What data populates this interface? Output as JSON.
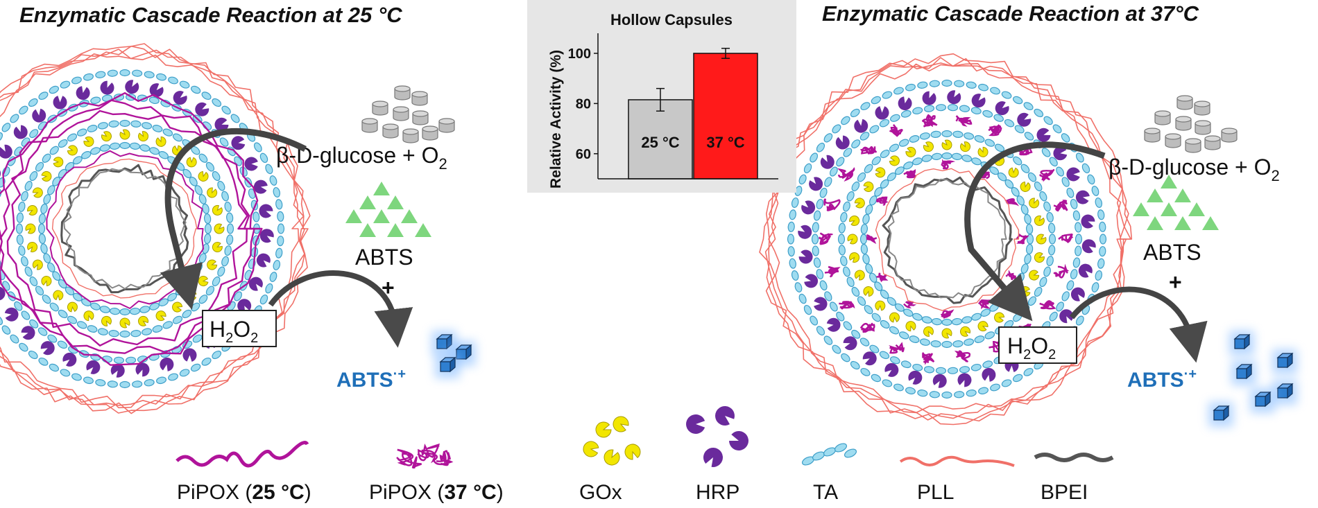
{
  "titles": {
    "left": "Enzymatic Cascade Reaction at 25 °C",
    "right": "Enzymatic Cascade Reaction at 37°C"
  },
  "reaction": {
    "glucose": "β-D-glucose + O",
    "o2_sub": "2",
    "abts": "ABTS",
    "plus": "+",
    "h2o2_h": "H",
    "h2o2_sub1": "2",
    "h2o2_o": "O",
    "h2o2_sub2": "2",
    "product": "ABTS",
    "product_sup": "·+"
  },
  "chart": {
    "title": "Hollow Capsules",
    "ylabel": "Relative Activity (%)",
    "yticks": [
      "60",
      "80",
      "100"
    ]
  },
  "chart_data": {
    "type": "bar",
    "title": "Hollow Capsules",
    "ylabel": "Relative Activity (%)",
    "categories": [
      "25 °C",
      "37 °C"
    ],
    "values": [
      81.5,
      100
    ],
    "errors": [
      4.5,
      2
    ],
    "ylim": [
      50,
      108
    ],
    "colors": [
      "#c8c8c8",
      "#ff1a1a"
    ]
  },
  "legend": {
    "pipox25_a": "PiPOX (",
    "pipox25_b": "25 °C",
    "pipox25_c": ")",
    "pipox37_a": "PiPOX (",
    "pipox37_b": "37 °C",
    "pipox37_c": ")",
    "gox": "GOx",
    "hrp": "HRP",
    "ta": "TA",
    "pll": "PLL",
    "bpei": "BPEI"
  },
  "colors": {
    "pipox": "#b0139a",
    "gox": "#f2e600",
    "hrp": "#6a2a9c",
    "ta": "#9fdcf0",
    "pll": "#f07068",
    "bpei": "#555555",
    "abts_tri": "#7ed67e",
    "abts_cube": "#2f7fd0"
  }
}
